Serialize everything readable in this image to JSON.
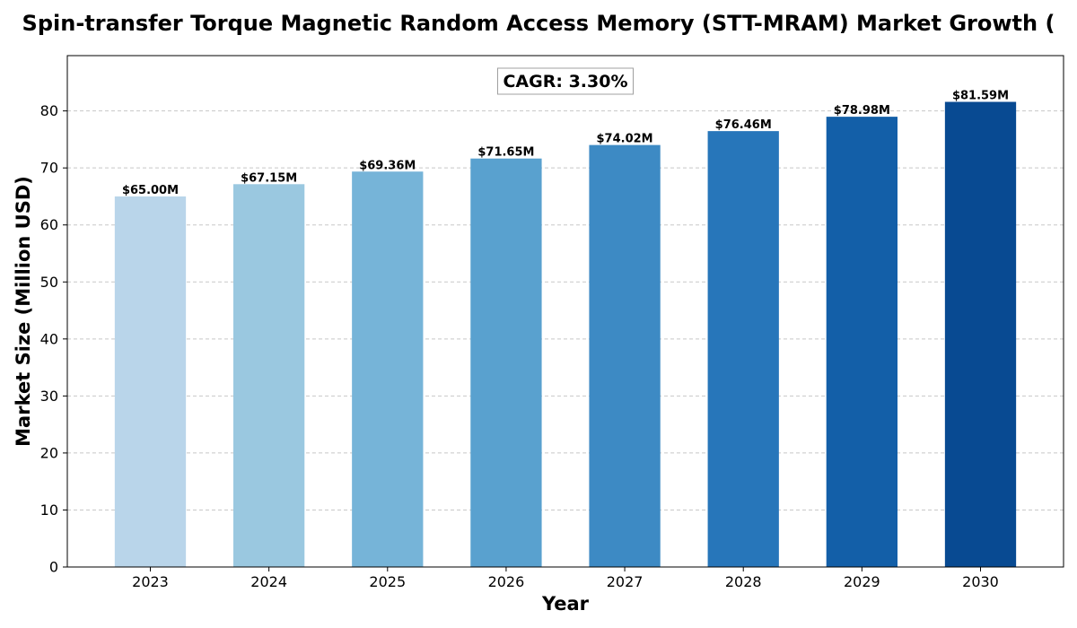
{
  "chart_data": {
    "type": "bar",
    "title": "Spin-transfer Torque Magnetic Random Access Memory (STT-MRAM) Market Growth (",
    "xlabel": "Year",
    "ylabel": "Market Size (Million USD)",
    "categories": [
      "2023",
      "2024",
      "2025",
      "2026",
      "2027",
      "2028",
      "2029",
      "2030"
    ],
    "values": [
      65.0,
      67.15,
      69.36,
      71.65,
      74.02,
      76.46,
      78.98,
      81.59
    ],
    "data_labels": [
      "$65.00M",
      "$67.15M",
      "$69.36M",
      "$71.65M",
      "$74.02M",
      "$76.46M",
      "$78.98M",
      "$81.59M"
    ],
    "bar_colors": [
      "#b9d5ea",
      "#9ac8e0",
      "#76b4d8",
      "#59a1cf",
      "#3d8ac4",
      "#2776ba",
      "#135fa8",
      "#084a92"
    ],
    "ylim": [
      0,
      89.7
    ],
    "yticks": [
      0,
      10,
      20,
      30,
      40,
      50,
      60,
      70,
      80
    ],
    "grid": true,
    "annotation": "CAGR: 3.30%"
  }
}
